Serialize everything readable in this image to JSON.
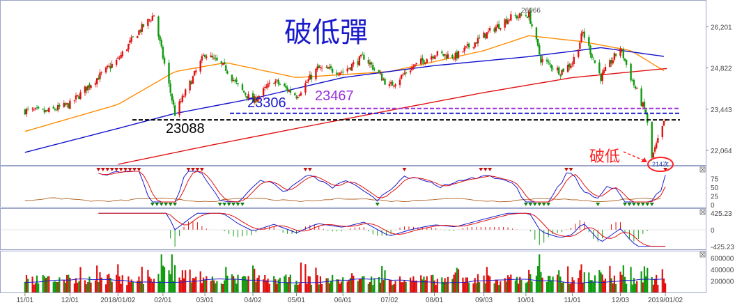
{
  "chart_data": {
    "type": "candlestick",
    "title": "破低彈",
    "annotations": {
      "high_label": "26966",
      "low_label": "214次",
      "break_label": "破低",
      "levels": [
        {
          "label": "23088",
          "value": 23088,
          "color": "#000000"
        },
        {
          "label": "23306",
          "value": 23306,
          "color": "#1a1acc"
        },
        {
          "label": "23467",
          "value": 23467,
          "color": "#9b30d9"
        }
      ]
    },
    "x_ticks": [
      "11/01",
      "12/01",
      "2018/01/02",
      "02/01",
      "03/01",
      "04/02",
      "05/01",
      "06/01",
      "07/02",
      "08/01",
      "09/03",
      "10/01",
      "11/01",
      "12/03",
      "2019/01/02"
    ],
    "price_panel": {
      "y_ticks": [
        "26,201",
        "24,822",
        "23,443",
        "22,064"
      ],
      "ylim": [
        21600,
        27000
      ],
      "close_series": [
        {
          "date": "2017-11-01",
          "value": 23400
        },
        {
          "date": "2017-11-15",
          "value": 23350
        },
        {
          "date": "2017-12-01",
          "value": 23600
        },
        {
          "date": "2017-12-15",
          "value": 24300
        },
        {
          "date": "2018-01-02",
          "value": 25100
        },
        {
          "date": "2018-01-15",
          "value": 26000
        },
        {
          "date": "2018-01-26",
          "value": 26600
        },
        {
          "date": "2018-02-09",
          "value": 23300
        },
        {
          "date": "2018-02-22",
          "value": 24600
        },
        {
          "date": "2018-03-01",
          "value": 25300
        },
        {
          "date": "2018-03-15",
          "value": 24800
        },
        {
          "date": "2018-03-23",
          "value": 24200
        },
        {
          "date": "2018-04-02",
          "value": 23700
        },
        {
          "date": "2018-04-16",
          "value": 24400
        },
        {
          "date": "2018-05-01",
          "value": 23900
        },
        {
          "date": "2018-05-15",
          "value": 24800
        },
        {
          "date": "2018-06-01",
          "value": 24700
        },
        {
          "date": "2018-06-15",
          "value": 25200
        },
        {
          "date": "2018-07-02",
          "value": 24200
        },
        {
          "date": "2018-07-16",
          "value": 24800
        },
        {
          "date": "2018-08-01",
          "value": 25300
        },
        {
          "date": "2018-08-15",
          "value": 25200
        },
        {
          "date": "2018-09-03",
          "value": 25900
        },
        {
          "date": "2018-09-20",
          "value": 26500
        },
        {
          "date": "2018-10-03",
          "value": 26600
        },
        {
          "date": "2018-10-11",
          "value": 25100
        },
        {
          "date": "2018-10-24",
          "value": 24700
        },
        {
          "date": "2018-11-01",
          "value": 25000
        },
        {
          "date": "2018-11-08",
          "value": 26000
        },
        {
          "date": "2018-11-20",
          "value": 24500
        },
        {
          "date": "2018-12-03",
          "value": 25500
        },
        {
          "date": "2018-12-10",
          "value": 24500
        },
        {
          "date": "2018-12-20",
          "value": 23300
        },
        {
          "date": "2018-12-24",
          "value": 21800
        },
        {
          "date": "2019-01-02",
          "value": 23100
        }
      ],
      "moving_averages": [
        {
          "color": "#ff8c00",
          "values": [
            {
              "date": "2017-11-01",
              "value": 22700
            },
            {
              "date": "2018-01-02",
              "value": 23600
            },
            {
              "date": "2018-02-09",
              "value": 24700
            },
            {
              "date": "2018-03-15",
              "value": 25000
            },
            {
              "date": "2018-05-01",
              "value": 24500
            },
            {
              "date": "2018-07-02",
              "value": 24700
            },
            {
              "date": "2018-09-03",
              "value": 25400
            },
            {
              "date": "2018-10-03",
              "value": 25900
            },
            {
              "date": "2018-11-08",
              "value": 25700
            },
            {
              "date": "2018-12-10",
              "value": 25400
            },
            {
              "date": "2019-01-02",
              "value": 24700
            }
          ]
        },
        {
          "color": "#1010cc",
          "values": [
            {
              "date": "2017-11-01",
              "value": 22000
            },
            {
              "date": "2018-01-02",
              "value": 22800
            },
            {
              "date": "2018-02-09",
              "value": 23300
            },
            {
              "date": "2018-04-02",
              "value": 23800
            },
            {
              "date": "2018-06-01",
              "value": 24500
            },
            {
              "date": "2018-08-01",
              "value": 24900
            },
            {
              "date": "2018-10-03",
              "value": 25200
            },
            {
              "date": "2018-11-20",
              "value": 25500
            },
            {
              "date": "2019-01-02",
              "value": 25200
            }
          ]
        },
        {
          "color": "#e01010",
          "values": [
            {
              "date": "2018-01-02",
              "value": 21600
            },
            {
              "date": "2018-03-01",
              "value": 22200
            },
            {
              "date": "2018-05-01",
              "value": 22800
            },
            {
              "date": "2018-07-02",
              "value": 23400
            },
            {
              "date": "2018-09-03",
              "value": 24000
            },
            {
              "date": "2018-11-01",
              "value": 24500
            },
            {
              "date": "2019-01-02",
              "value": 24800
            }
          ]
        }
      ]
    },
    "kd_panel": {
      "y_ticks": [
        "75",
        "50",
        "25",
        "0"
      ],
      "ylim": [
        0,
        100
      ]
    },
    "macd_panel": {
      "y_ticks": [
        "425.23",
        "0",
        "-425.23"
      ],
      "ylim": [
        -425.23,
        425.23
      ]
    },
    "volume_panel": {
      "y_ticks": [
        "600000",
        "400000",
        "200000"
      ],
      "ylim": [
        0,
        700000
      ]
    },
    "colors": {
      "up": "#e01010",
      "down": "#109a10",
      "axis_text": "#444444",
      "panel_border": "#9aa3c8"
    }
  }
}
